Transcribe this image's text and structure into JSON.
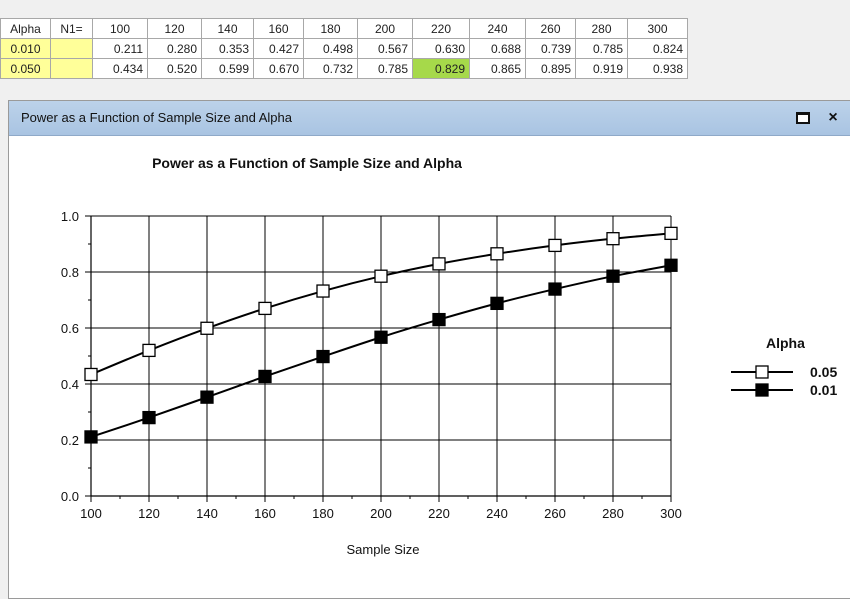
{
  "grid": {
    "header": [
      "Alpha",
      "N1=",
      "100",
      "120",
      "140",
      "160",
      "180",
      "200",
      "220",
      "240",
      "260",
      "280",
      "300"
    ],
    "rows": [
      {
        "alpha": "0.010",
        "values": [
          "0.211",
          "0.280",
          "0.353",
          "0.427",
          "0.498",
          "0.567",
          "0.630",
          "0.688",
          "0.739",
          "0.785",
          "0.824"
        ]
      },
      {
        "alpha": "0.050",
        "values": [
          "0.434",
          "0.520",
          "0.599",
          "0.670",
          "0.732",
          "0.785",
          "0.829",
          "0.865",
          "0.895",
          "0.919",
          "0.938"
        ]
      }
    ],
    "highlight_color": "#a6d94a",
    "alpha_cell_color": "#ffff99"
  },
  "window": {
    "title": "Power as a Function of Sample Size and Alpha",
    "maximize_icon": "maximize-icon",
    "close_label": "×"
  },
  "chart_data": {
    "type": "line",
    "title": "Power as a Function of Sample Size and Alpha",
    "xlabel": "Sample Size",
    "ylabel": "",
    "x": [
      100,
      120,
      140,
      160,
      180,
      200,
      220,
      240,
      260,
      280,
      300
    ],
    "xlim": [
      100,
      300
    ],
    "ylim": [
      0.0,
      1.0
    ],
    "x_ticks": [
      "100",
      "120",
      "140",
      "160",
      "180",
      "200",
      "220",
      "240",
      "260",
      "280",
      "300"
    ],
    "y_ticks": [
      "0.0",
      "0.2",
      "0.4",
      "0.6",
      "0.8",
      "1.0"
    ],
    "grid": true,
    "legend_title": "Alpha",
    "legend_position": "right",
    "series": [
      {
        "name": "0.05",
        "marker": "open-square",
        "values": [
          0.434,
          0.52,
          0.599,
          0.67,
          0.732,
          0.785,
          0.829,
          0.865,
          0.895,
          0.919,
          0.938
        ]
      },
      {
        "name": "0.01",
        "marker": "filled-square",
        "values": [
          0.211,
          0.28,
          0.353,
          0.427,
          0.498,
          0.567,
          0.63,
          0.688,
          0.739,
          0.785,
          0.824
        ]
      }
    ]
  }
}
